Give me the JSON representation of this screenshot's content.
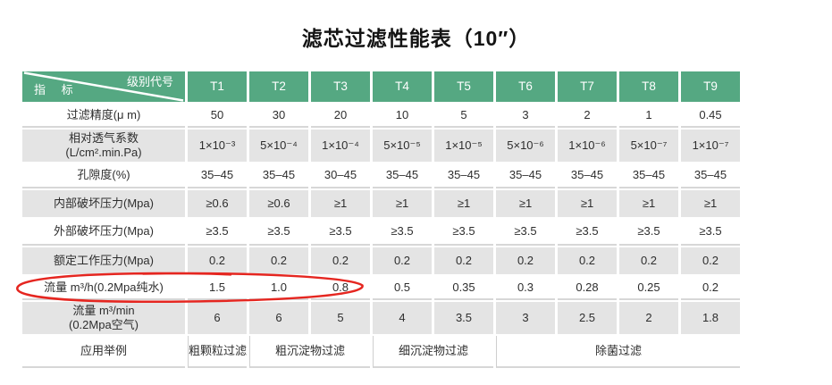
{
  "page": {
    "title": "滤芯过滤性能表（10″）"
  },
  "colors": {
    "header_green": "#55a882",
    "row_shade": "#e4e4e4",
    "underline_gray": "#d7d7d7",
    "annotation_red": "#e52620"
  },
  "table": {
    "corner": {
      "top_label": "级别代号",
      "bottom_label": "指 标"
    },
    "columns": [
      "T1",
      "T2",
      "T3",
      "T4",
      "T5",
      "T6",
      "T7",
      "T8",
      "T9"
    ],
    "rows": [
      {
        "label_lines": [
          "过滤精度(μ m)"
        ],
        "shaded": false,
        "values": [
          "50",
          "30",
          "20",
          "10",
          "5",
          "3",
          "2",
          "1",
          "0.45"
        ]
      },
      {
        "label_lines": [
          "相对透气系数",
          "(L/cm².min.Pa)"
        ],
        "shaded": true,
        "values": [
          "1×10⁻³",
          "5×10⁻⁴",
          "1×10⁻⁴",
          "5×10⁻⁵",
          "1×10⁻⁵",
          "5×10⁻⁶",
          "1×10⁻⁶",
          "5×10⁻⁷",
          "1×10⁻⁷"
        ]
      },
      {
        "label_lines": [
          "孔隙度(%)"
        ],
        "shaded": false,
        "values": [
          "35–45",
          "35–45",
          "30–45",
          "35–45",
          "35–45",
          "35–45",
          "35–45",
          "35–45",
          "35–45"
        ]
      },
      {
        "label_lines": [
          "内部破坏压力(Mpa)"
        ],
        "shaded": true,
        "values": [
          "≥0.6",
          "≥0.6",
          "≥1",
          "≥1",
          "≥1",
          "≥1",
          "≥1",
          "≥1",
          "≥1"
        ]
      },
      {
        "label_lines": [
          "外部破坏压力(Mpa)"
        ],
        "shaded": false,
        "values": [
          "≥3.5",
          "≥3.5",
          "≥3.5",
          "≥3.5",
          "≥3.5",
          "≥3.5",
          "≥3.5",
          "≥3.5",
          "≥3.5"
        ]
      },
      {
        "label_lines": [
          "额定工作压力(Mpa)"
        ],
        "shaded": true,
        "values": [
          "0.2",
          "0.2",
          "0.2",
          "0.2",
          "0.2",
          "0.2",
          "0.2",
          "0.2",
          "0.2"
        ]
      },
      {
        "label_lines": [
          "流量 m³/h(0.2Mpa纯水)"
        ],
        "shaded": false,
        "annotated": true,
        "values": [
          "1.5",
          "1.0",
          "0.8",
          "0.5",
          "0.35",
          "0.3",
          "0.28",
          "0.25",
          "0.2"
        ]
      },
      {
        "label_lines": [
          "流量 m³/min",
          "(0.2Mpa空气)"
        ],
        "shaded": true,
        "values": [
          "6",
          "6",
          "5",
          "4",
          "3.5",
          "3",
          "2.5",
          "2",
          "1.8"
        ]
      },
      {
        "label_lines": [
          "应用举例"
        ],
        "shaded": false,
        "spans": [
          {
            "text": "粗颗粒过滤",
            "cols": 1
          },
          {
            "text": "粗沉淀物过滤",
            "cols": 2
          },
          {
            "text": "细沉淀物过滤",
            "cols": 2
          },
          {
            "text": "除菌过滤",
            "cols": 4
          }
        ]
      }
    ]
  },
  "annotation": {
    "type": "hand-drawn-ellipse",
    "around": "流量 m³/h(0.2Mpa纯水) row label and first values"
  }
}
